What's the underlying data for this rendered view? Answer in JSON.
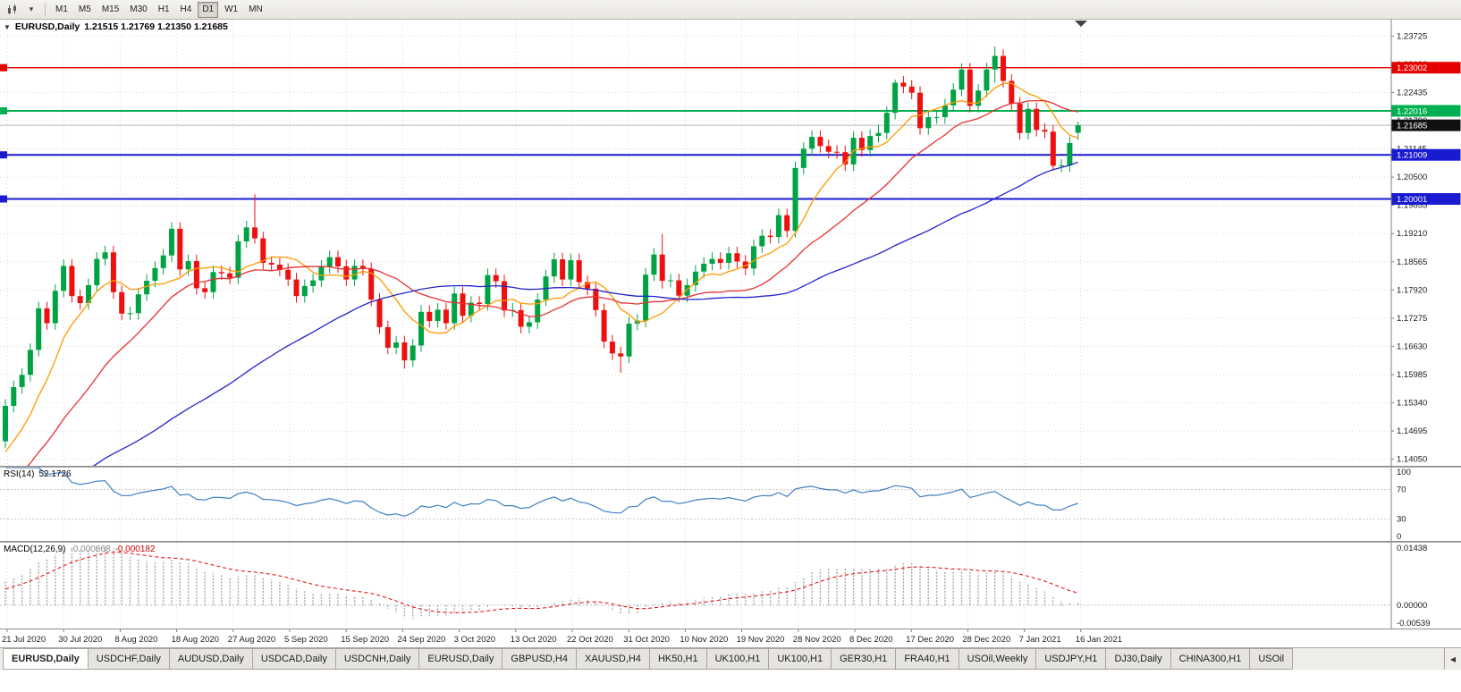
{
  "toolbar": {
    "timeframes": [
      "M1",
      "M5",
      "M15",
      "M30",
      "H1",
      "H4",
      "D1",
      "W1",
      "MN"
    ],
    "active_timeframe": "D1"
  },
  "icons": {
    "chart_collapse": "▼",
    "dropdown_caret": "▾",
    "tab_scroll_left": "◀"
  },
  "main_chart": {
    "title": "EURUSD,Daily",
    "ohlc_text": "1.21515 1.21769 1.21350 1.21685",
    "current_price_tag": {
      "text": "1.21685",
      "price": 1.21685,
      "bg": "#111111"
    },
    "hlines": [
      {
        "price": 1.23002,
        "label": "1.23002",
        "color": "#E60000",
        "width": 1.4
      },
      {
        "price": 1.22016,
        "label": "1.22016",
        "color": "#00B050",
        "width": 2
      },
      {
        "price": 1.21009,
        "label": "1.21009",
        "color": "#1A1AD0",
        "width": 2
      },
      {
        "price": 1.20001,
        "label": "1.20001",
        "color": "#1A1AD0",
        "width": 2
      }
    ]
  },
  "rsi_panel": {
    "label": "RSI(14)",
    "value": "52.1726",
    "scale_labels": [
      "100",
      "70",
      "30",
      "0"
    ],
    "levels": [
      70,
      30
    ],
    "line_color": "#3E7FC4"
  },
  "macd_panel": {
    "label": "MACD(12,26,9)",
    "main_value": "-0.000868",
    "signal_value": "-0.000182",
    "scale_labels": [
      "0.01438",
      "0.00000",
      "-0.00539"
    ],
    "vmax": 0.01438,
    "vmin": -0.00539,
    "histogram_color": "#A6A6A6",
    "signal_color": "#E60000"
  },
  "tabs": {
    "active_index": 0,
    "items": [
      "EURUSD,Daily",
      "USDCHF,Daily",
      "AUDUSD,Daily",
      "USDCAD,Daily",
      "USDCNH,Daily",
      "EURUSD,Daily",
      "GBPUSD,H4",
      "XAUUSD,H4",
      "HK50,H1",
      "UK100,H1",
      "UK100,H1",
      "GER30,H1",
      "FRA40,H1",
      "USOil,Weekly",
      "USDJPY,H1",
      "DJ30,Daily",
      "CHINA300,H1",
      "USOil"
    ]
  },
  "chart_data": {
    "type": "candlestick",
    "symbol": "EURUSD",
    "timeframe": "Daily",
    "ylim": [
      1.139,
      1.241
    ],
    "y_ticks": [
      "1.23725",
      "1.23080",
      "1.22435",
      "1.21790",
      "1.21145",
      "1.20500",
      "1.19855",
      "1.19210",
      "1.18565",
      "1.17920",
      "1.17275",
      "1.16630",
      "1.15985",
      "1.15340",
      "1.14695",
      "1.14050"
    ],
    "x_ticks": [
      "21 Jul 2020",
      "30 Jul 2020",
      "8 Aug 2020",
      "18 Aug 2020",
      "27 Aug 2020",
      "5 Sep 2020",
      "15 Sep 2020",
      "24 Sep 2020",
      "3 Oct 2020",
      "13 Oct 2020",
      "22 Oct 2020",
      "31 Oct 2020",
      "10 Nov 2020",
      "19 Nov 2020",
      "28 Nov 2020",
      "8 Dec 2020",
      "17 Dec 2020",
      "28 Dec 2020",
      "7 Jan 2021",
      "16 Jan 2021"
    ],
    "up_color": "#00A344",
    "down_color": "#EE0F0F",
    "moving_averages": [
      {
        "name": "fast",
        "period": 8,
        "color": "#FF9900"
      },
      {
        "name": "medium",
        "period": 20,
        "color": "#E83030"
      },
      {
        "name": "slow",
        "period": 50,
        "color": "#2424CC"
      }
    ],
    "indicators": {
      "rsi": {
        "period": 14,
        "last": 52.1726
      },
      "macd": {
        "fast": 12,
        "slow": 26,
        "signal": 9,
        "last_main": -0.000868,
        "last_signal": -0.000182
      }
    },
    "ohlc": [
      [
        1.1446,
        1.1542,
        1.1431,
        1.1527
      ],
      [
        1.1527,
        1.1585,
        1.1512,
        1.157
      ],
      [
        1.157,
        1.1613,
        1.1555,
        1.1598
      ],
      [
        1.1598,
        1.167,
        1.1583,
        1.1655
      ],
      [
        1.1655,
        1.1765,
        1.164,
        1.175
      ],
      [
        1.175,
        1.1765,
        1.1701,
        1.1716
      ],
      [
        1.1716,
        1.1805,
        1.1701,
        1.179
      ],
      [
        1.179,
        1.1862,
        1.1775,
        1.1847
      ],
      [
        1.1847,
        1.1862,
        1.1763,
        1.1778
      ],
      [
        1.1778,
        1.1793,
        1.1747,
        1.1762
      ],
      [
        1.1762,
        1.1818,
        1.1747,
        1.1803
      ],
      [
        1.1803,
        1.1878,
        1.1788,
        1.1863
      ],
      [
        1.1863,
        1.1893,
        1.1848,
        1.1878
      ],
      [
        1.1878,
        1.1893,
        1.1772,
        1.1787
      ],
      [
        1.1787,
        1.1802,
        1.1723,
        1.1738
      ],
      [
        1.1738,
        1.1754,
        1.1723,
        1.1739
      ],
      [
        1.1739,
        1.1797,
        1.1724,
        1.1782
      ],
      [
        1.1782,
        1.1828,
        1.1767,
        1.1813
      ],
      [
        1.1813,
        1.1857,
        1.1798,
        1.1842
      ],
      [
        1.1842,
        1.1886,
        1.1827,
        1.1871
      ],
      [
        1.1871,
        1.1947,
        1.1856,
        1.1932
      ],
      [
        1.1932,
        1.1947,
        1.1824,
        1.1839
      ],
      [
        1.1839,
        1.1873,
        1.1824,
        1.1858
      ],
      [
        1.1858,
        1.1873,
        1.1781,
        1.1796
      ],
      [
        1.1796,
        1.1811,
        1.1772,
        1.1787
      ],
      [
        1.1787,
        1.1848,
        1.1772,
        1.1833
      ],
      [
        1.1833,
        1.1848,
        1.1815,
        1.183
      ],
      [
        1.183,
        1.1845,
        1.1805,
        1.182
      ],
      [
        1.182,
        1.1918,
        1.1805,
        1.1903
      ],
      [
        1.1903,
        1.195,
        1.1888,
        1.1935
      ],
      [
        1.1935,
        1.2011,
        1.1898,
        1.191
      ],
      [
        1.191,
        1.1925,
        1.1839,
        1.1854
      ],
      [
        1.1854,
        1.1869,
        1.1835,
        1.185
      ],
      [
        1.185,
        1.1865,
        1.1823,
        1.1838
      ],
      [
        1.1838,
        1.1853,
        1.1801,
        1.1816
      ],
      [
        1.1816,
        1.1831,
        1.1763,
        1.1778
      ],
      [
        1.1778,
        1.1816,
        1.1763,
        1.1801
      ],
      [
        1.1801,
        1.1829,
        1.1786,
        1.1814
      ],
      [
        1.1814,
        1.186,
        1.1799,
        1.1845
      ],
      [
        1.1845,
        1.1882,
        1.183,
        1.1867
      ],
      [
        1.1867,
        1.1882,
        1.1831,
        1.1846
      ],
      [
        1.1846,
        1.1861,
        1.1801,
        1.1816
      ],
      [
        1.1816,
        1.1862,
        1.1801,
        1.1847
      ],
      [
        1.1847,
        1.1862,
        1.1825,
        1.184
      ],
      [
        1.184,
        1.1855,
        1.1755,
        1.177
      ],
      [
        1.177,
        1.1785,
        1.1692,
        1.1707
      ],
      [
        1.1707,
        1.1722,
        1.1645,
        1.166
      ],
      [
        1.166,
        1.1687,
        1.1645,
        1.1672
      ],
      [
        1.1672,
        1.1687,
        1.1612,
        1.1631
      ],
      [
        1.1631,
        1.168,
        1.1616,
        1.1665
      ],
      [
        1.1665,
        1.1757,
        1.165,
        1.1742
      ],
      [
        1.1742,
        1.1757,
        1.1706,
        1.1721
      ],
      [
        1.1721,
        1.1762,
        1.1706,
        1.1747
      ],
      [
        1.1747,
        1.1762,
        1.1701,
        1.1716
      ],
      [
        1.1716,
        1.1799,
        1.1701,
        1.1784
      ],
      [
        1.1784,
        1.1799,
        1.1718,
        1.1733
      ],
      [
        1.1733,
        1.1778,
        1.1718,
        1.1763
      ],
      [
        1.1763,
        1.1778,
        1.1745,
        1.176
      ],
      [
        1.176,
        1.1841,
        1.1745,
        1.1826
      ],
      [
        1.1826,
        1.1841,
        1.1797,
        1.1812
      ],
      [
        1.1812,
        1.1827,
        1.173,
        1.1745
      ],
      [
        1.1745,
        1.1762,
        1.173,
        1.1746
      ],
      [
        1.1746,
        1.1761,
        1.1693,
        1.1708
      ],
      [
        1.1708,
        1.1733,
        1.1693,
        1.1718
      ],
      [
        1.1718,
        1.1785,
        1.1703,
        1.177
      ],
      [
        1.177,
        1.1838,
        1.1755,
        1.1823
      ],
      [
        1.1823,
        1.1877,
        1.1808,
        1.1862
      ],
      [
        1.1862,
        1.1877,
        1.1801,
        1.1816
      ],
      [
        1.1816,
        1.1875,
        1.1801,
        1.186
      ],
      [
        1.186,
        1.1875,
        1.1795,
        1.181
      ],
      [
        1.181,
        1.1825,
        1.178,
        1.1795
      ],
      [
        1.1795,
        1.181,
        1.1731,
        1.1746
      ],
      [
        1.1746,
        1.1761,
        1.1659,
        1.1674
      ],
      [
        1.1674,
        1.1689,
        1.1632,
        1.1647
      ],
      [
        1.1647,
        1.1662,
        1.1603,
        1.164
      ],
      [
        1.164,
        1.173,
        1.1625,
        1.1715
      ],
      [
        1.1715,
        1.1737,
        1.17,
        1.1722
      ],
      [
        1.1722,
        1.1842,
        1.1707,
        1.1827
      ],
      [
        1.1827,
        1.1888,
        1.1812,
        1.1873
      ],
      [
        1.1873,
        1.192,
        1.1795,
        1.1813
      ],
      [
        1.1813,
        1.1829,
        1.1798,
        1.1814
      ],
      [
        1.1814,
        1.1829,
        1.1764,
        1.1779
      ],
      [
        1.1779,
        1.1818,
        1.1764,
        1.1803
      ],
      [
        1.1803,
        1.1849,
        1.1788,
        1.1834
      ],
      [
        1.1834,
        1.1867,
        1.1819,
        1.1852
      ],
      [
        1.1852,
        1.1878,
        1.1837,
        1.1863
      ],
      [
        1.1863,
        1.1878,
        1.1839,
        1.1854
      ],
      [
        1.1854,
        1.1891,
        1.1839,
        1.1876
      ],
      [
        1.1876,
        1.1891,
        1.1842,
        1.1857
      ],
      [
        1.1857,
        1.1872,
        1.1826,
        1.1841
      ],
      [
        1.1841,
        1.1907,
        1.1826,
        1.1892
      ],
      [
        1.1892,
        1.1931,
        1.1877,
        1.1916
      ],
      [
        1.1916,
        1.1931,
        1.1898,
        1.1913
      ],
      [
        1.1913,
        1.1978,
        1.1898,
        1.1963
      ],
      [
        1.1963,
        1.1978,
        1.1912,
        1.1927
      ],
      [
        1.1927,
        1.2086,
        1.1912,
        1.2071
      ],
      [
        1.2071,
        1.213,
        1.2056,
        1.2115
      ],
      [
        1.2115,
        1.2157,
        1.21,
        1.2142
      ],
      [
        1.2142,
        1.2157,
        1.2106,
        1.2121
      ],
      [
        1.2121,
        1.2136,
        1.2093,
        1.2108
      ],
      [
        1.2108,
        1.2123,
        1.2092,
        1.2107
      ],
      [
        1.2107,
        1.2122,
        1.2064,
        1.2079
      ],
      [
        1.2079,
        1.2155,
        1.2064,
        1.214
      ],
      [
        1.214,
        1.2155,
        1.2097,
        1.2112
      ],
      [
        1.2112,
        1.2159,
        1.2097,
        1.2144
      ],
      [
        1.2144,
        1.217,
        1.2129,
        1.2151
      ],
      [
        1.2151,
        1.2212,
        1.2136,
        1.2197
      ],
      [
        1.2197,
        1.2273,
        1.2182,
        1.2266
      ],
      [
        1.2266,
        1.2281,
        1.2242,
        1.2257
      ],
      [
        1.2257,
        1.2272,
        1.2228,
        1.2243
      ],
      [
        1.2243,
        1.2258,
        1.2147,
        1.2162
      ],
      [
        1.2162,
        1.2202,
        1.2147,
        1.2187
      ],
      [
        1.2187,
        1.2202,
        1.2172,
        1.2187
      ],
      [
        1.2187,
        1.2229,
        1.2172,
        1.2214
      ],
      [
        1.2214,
        1.2265,
        1.2199,
        1.225
      ],
      [
        1.225,
        1.231,
        1.2235,
        1.2296
      ],
      [
        1.2296,
        1.2311,
        1.2198,
        1.2213
      ],
      [
        1.2213,
        1.2263,
        1.2198,
        1.2248
      ],
      [
        1.2248,
        1.2311,
        1.2233,
        1.2296
      ],
      [
        1.2296,
        1.2349,
        1.2266,
        1.2327
      ],
      [
        1.2327,
        1.2342,
        1.2255,
        1.227
      ],
      [
        1.227,
        1.2285,
        1.2203,
        1.2218
      ],
      [
        1.2218,
        1.2233,
        1.2136,
        1.2151
      ],
      [
        1.2151,
        1.2221,
        1.2136,
        1.2206
      ],
      [
        1.2206,
        1.2221,
        1.2143,
        1.2158
      ],
      [
        1.2158,
        1.2173,
        1.2139,
        1.2154
      ],
      [
        1.2154,
        1.2169,
        1.2065,
        1.2076
      ],
      [
        1.2076,
        1.2091,
        1.2061,
        1.2077
      ],
      [
        1.2077,
        1.2143,
        1.2062,
        1.2128
      ],
      [
        1.21515,
        1.21769,
        1.2135,
        1.21685
      ]
    ]
  }
}
